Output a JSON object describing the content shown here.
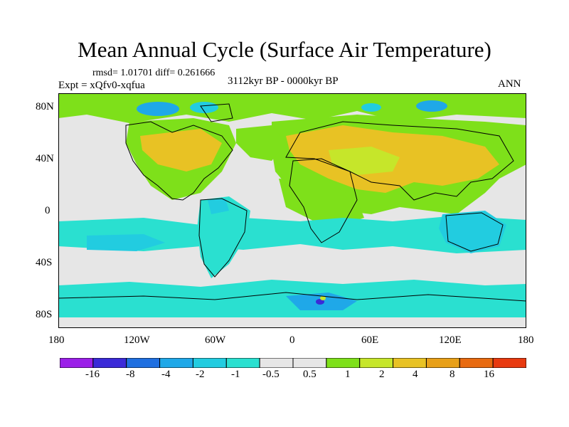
{
  "title": "Mean Annual Cycle (Surface Air Temperature)",
  "stats": "rmsd= 1.01701 diff= 0.261666",
  "experiment": "Expt = xQfv0-xqfua",
  "period": "3112kyr BP - 0000kyr BP",
  "season": "ANN",
  "lat_labels": [
    "80N",
    "40N",
    "0",
    "40S",
    "80S"
  ],
  "lon_labels": [
    "180",
    "120W",
    "60W",
    "0",
    "60E",
    "120E",
    "180"
  ],
  "colorbar": {
    "colors": [
      "#9b1fe8",
      "#3b2ad8",
      "#1f6fe0",
      "#1fa8e8",
      "#22cce0",
      "#2ae0d0",
      "#e6e6e6",
      "#e6e6e6",
      "#7ee01a",
      "#c6e62a",
      "#e8c224",
      "#e8a018",
      "#e86a10",
      "#e83a10"
    ],
    "labels": [
      "-16",
      "-8",
      "-4",
      "-2",
      "-1",
      "-0.5",
      "0.5",
      "1",
      "2",
      "4",
      "8",
      "16"
    ]
  },
  "legend_values": {
    "min_anomaly": -16,
    "max_anomaly": 16
  }
}
